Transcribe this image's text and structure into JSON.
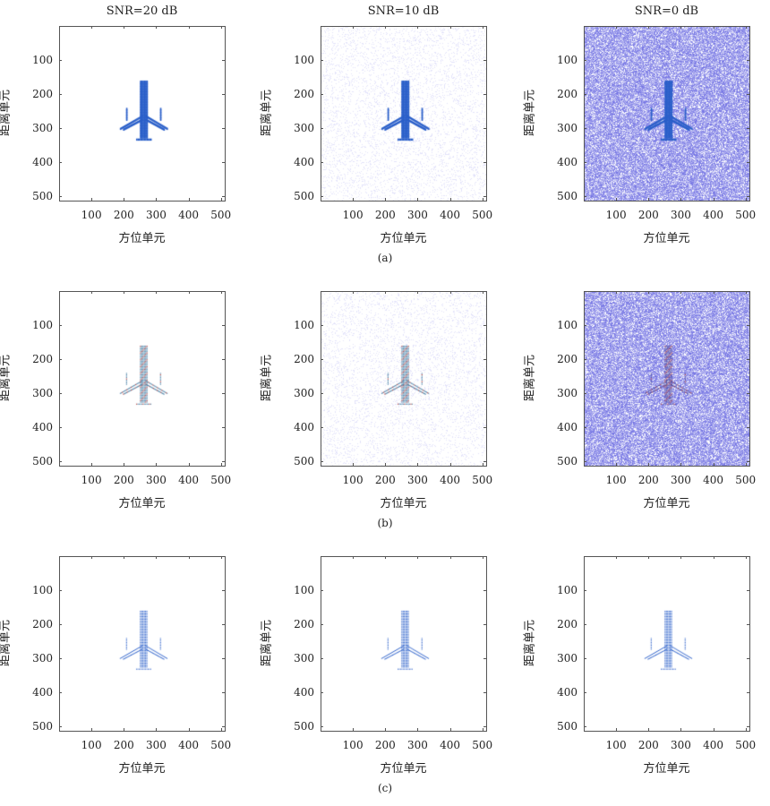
{
  "chart_data": [
    {
      "type": "heatmap",
      "row": "a",
      "title": "SNR=20 dB",
      "snr_db": 20,
      "xlabel": "方位单元",
      "ylabel": "距离单元",
      "xlim": [
        0,
        512
      ],
      "ylim": [
        512,
        0
      ],
      "xticks": [
        100,
        200,
        300,
        400,
        500
      ],
      "yticks": [
        100,
        200,
        300,
        400,
        500
      ]
    },
    {
      "type": "heatmap",
      "row": "a",
      "title": "SNR=10 dB",
      "snr_db": 10,
      "xlabel": "方位单元",
      "ylabel": "距离单元",
      "xlim": [
        0,
        512
      ],
      "ylim": [
        512,
        0
      ],
      "xticks": [
        100,
        200,
        300,
        400,
        500
      ],
      "yticks": [
        100,
        200,
        300,
        400,
        500
      ]
    },
    {
      "type": "heatmap",
      "row": "a",
      "title": "SNR=0 dB",
      "snr_db": 0,
      "xlabel": "方位单元",
      "ylabel": "距离单元",
      "xlim": [
        0,
        512
      ],
      "ylim": [
        512,
        0
      ],
      "xticks": [
        100,
        200,
        300,
        400,
        500
      ],
      "yticks": [
        100,
        200,
        300,
        400,
        500
      ]
    },
    {
      "type": "heatmap",
      "row": "b",
      "title": "",
      "snr_db": 20,
      "xlabel": "方位单元",
      "ylabel": "距离单元",
      "xlim": [
        0,
        512
      ],
      "ylim": [
        512,
        0
      ],
      "xticks": [
        100,
        200,
        300,
        400,
        500
      ],
      "yticks": [
        100,
        200,
        300,
        400,
        500
      ]
    },
    {
      "type": "heatmap",
      "row": "b",
      "title": "",
      "snr_db": 10,
      "xlabel": "方位单元",
      "ylabel": "距离单元",
      "xlim": [
        0,
        512
      ],
      "ylim": [
        512,
        0
      ],
      "xticks": [
        100,
        200,
        300,
        400,
        500
      ],
      "yticks": [
        100,
        200,
        300,
        400,
        500
      ]
    },
    {
      "type": "heatmap",
      "row": "b",
      "title": "",
      "snr_db": 0,
      "xlabel": "方位单元",
      "ylabel": "距离单元",
      "xlim": [
        0,
        512
      ],
      "ylim": [
        512,
        0
      ],
      "xticks": [
        100,
        200,
        300,
        400,
        500
      ],
      "yticks": [
        100,
        200,
        300,
        400,
        500
      ]
    },
    {
      "type": "heatmap",
      "row": "c",
      "title": "",
      "snr_db": 20,
      "xlabel": "方位单元",
      "ylabel": "距离单元",
      "xlim": [
        0,
        512
      ],
      "ylim": [
        512,
        0
      ],
      "xticks": [
        100,
        200,
        300,
        400,
        500
      ],
      "yticks": [
        100,
        200,
        300,
        400,
        500
      ]
    },
    {
      "type": "heatmap",
      "row": "c",
      "title": "",
      "snr_db": 10,
      "xlabel": "方位单元",
      "ylabel": "距离单元",
      "xlim": [
        0,
        512
      ],
      "ylim": [
        512,
        0
      ],
      "xticks": [
        100,
        200,
        300,
        400,
        500
      ],
      "yticks": [
        100,
        200,
        300,
        400,
        500
      ]
    },
    {
      "type": "heatmap",
      "row": "c",
      "title": "",
      "snr_db": 0,
      "xlabel": "方位单元",
      "ylabel": "距离单元",
      "xlim": [
        0,
        512
      ],
      "ylim": [
        512,
        0
      ],
      "xticks": [
        100,
        200,
        300,
        400,
        500
      ],
      "yticks": [
        100,
        200,
        300,
        400,
        500
      ]
    }
  ],
  "captions": [
    "(a)",
    "(b)",
    "(c)"
  ],
  "colors": {
    "target": "#2a5fc9",
    "noise": "#3c3cd8",
    "accent": "#c0504d"
  }
}
